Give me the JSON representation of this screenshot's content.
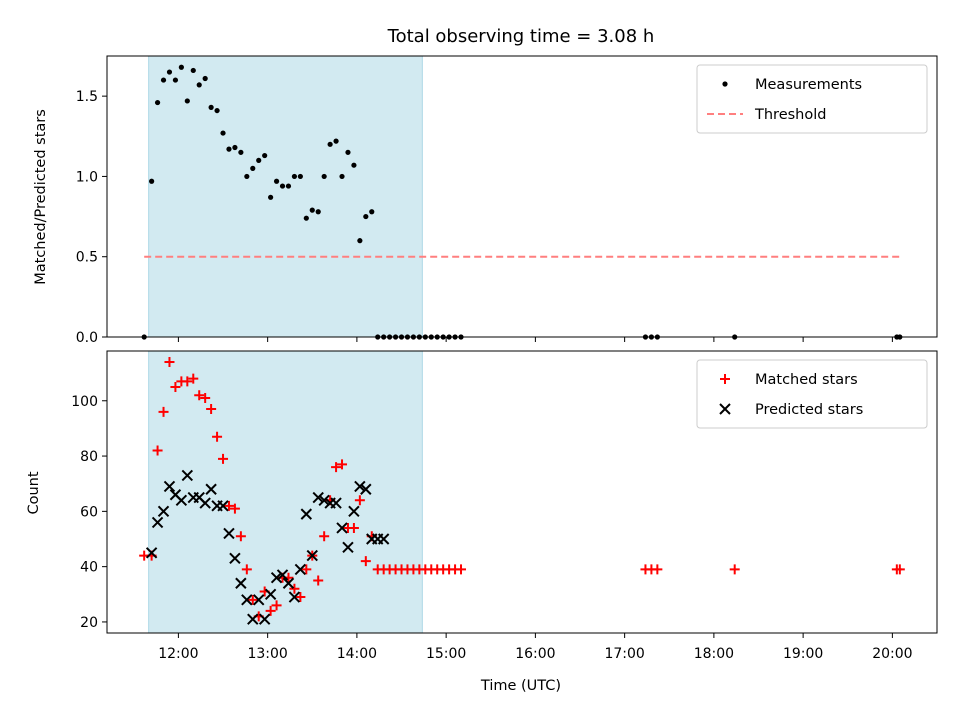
{
  "chart_data": {
    "type": "scatter",
    "title": "Total observing time = 3.08 h",
    "xlabel": "Time (UTC)",
    "x_tick_labels": [
      "12:00",
      "13:00",
      "14:00",
      "15:00",
      "16:00",
      "17:00",
      "18:00",
      "19:00",
      "20:00"
    ],
    "xlim": [
      "11:12",
      "20:30"
    ],
    "shaded_interval": [
      "11:40",
      "14:44"
    ],
    "colors": {
      "shade": "#add8e6",
      "matched": "#ff0000",
      "predicted": "#000000",
      "threshold": "#ff7f7f"
    },
    "panels": [
      {
        "ylabel": "Matched/Predicted stars",
        "ylim": [
          0,
          1.75
        ],
        "y_tick_labels": [
          "0.0",
          "0.5",
          "1.0",
          "1.5"
        ],
        "legend": {
          "placement": "top-right",
          "entries": [
            "Measurements",
            "Threshold"
          ]
        },
        "series": [
          {
            "name": "Measurements",
            "marker": "dot",
            "x": [
              "11:37",
              "11:42",
              "11:46",
              "11:50",
              "11:54",
              "11:58",
              "12:02",
              "12:06",
              "12:10",
              "12:14",
              "12:18",
              "12:22",
              "12:26",
              "12:30",
              "12:34",
              "12:38",
              "12:42",
              "12:46",
              "12:50",
              "12:54",
              "12:58",
              "13:02",
              "13:06",
              "13:10",
              "13:14",
              "13:18",
              "13:22",
              "13:26",
              "13:30",
              "13:34",
              "13:38",
              "13:42",
              "13:46",
              "13:50",
              "13:54",
              "13:58",
              "14:02",
              "14:06",
              "14:10",
              "14:14",
              "14:18",
              "14:22",
              "14:26",
              "14:30",
              "14:34",
              "14:38",
              "14:42",
              "14:46",
              "14:50",
              "14:54",
              "14:58",
              "15:02",
              "15:06",
              "15:10",
              "17:14",
              "17:18",
              "17:22",
              "18:14",
              "20:03",
              "20:05"
            ],
            "y": [
              0.0,
              0.97,
              1.46,
              1.6,
              1.65,
              1.6,
              1.68,
              1.47,
              1.66,
              1.57,
              1.61,
              1.43,
              1.41,
              1.27,
              1.17,
              1.18,
              1.15,
              1.0,
              1.05,
              1.1,
              1.13,
              0.87,
              0.97,
              0.94,
              0.94,
              1.0,
              1.0,
              0.74,
              0.79,
              0.78,
              1.0,
              1.2,
              1.22,
              1.0,
              1.15,
              1.07,
              0.6,
              0.75,
              0.78,
              0.0,
              0.0,
              0.0,
              0.0,
              0.0,
              0.0,
              0.0,
              0.0,
              0.0,
              0.0,
              0.0,
              0.0,
              0.0,
              0.0,
              0.0,
              0.0,
              0.0,
              0.0,
              0.0,
              0.0,
              0.0
            ]
          },
          {
            "name": "Threshold",
            "marker": "dashed-line",
            "x": [
              "11:37",
              "20:05"
            ],
            "y": [
              0.5,
              0.5
            ]
          }
        ]
      },
      {
        "ylabel": "Count",
        "ylim": [
          16,
          118
        ],
        "y_tick_labels": [
          "20",
          "40",
          "60",
          "80",
          "100"
        ],
        "legend": {
          "placement": "top-right",
          "entries": [
            "Matched stars",
            "Predicted stars"
          ]
        },
        "series": [
          {
            "name": "Matched stars",
            "marker": "plus",
            "x": [
              "11:37",
              "11:42",
              "11:46",
              "11:50",
              "11:54",
              "11:58",
              "12:02",
              "12:06",
              "12:10",
              "12:14",
              "12:18",
              "12:22",
              "12:26",
              "12:30",
              "12:34",
              "12:38",
              "12:42",
              "12:46",
              "12:50",
              "12:54",
              "12:58",
              "13:02",
              "13:06",
              "13:10",
              "13:14",
              "13:18",
              "13:22",
              "13:26",
              "13:30",
              "13:34",
              "13:38",
              "13:42",
              "13:46",
              "13:50",
              "13:54",
              "13:58",
              "14:02",
              "14:06",
              "14:10",
              "14:14",
              "14:18",
              "14:22",
              "14:26",
              "14:30",
              "14:34",
              "14:38",
              "14:42",
              "14:46",
              "14:50",
              "14:54",
              "14:58",
              "15:02",
              "15:06",
              "15:10",
              "17:14",
              "17:18",
              "17:22",
              "18:14",
              "20:03",
              "20:05"
            ],
            "y": [
              44,
              44,
              82,
              96,
              114,
              105,
              107,
              107,
              108,
              102,
              101,
              97,
              87,
              79,
              62,
              61,
              51,
              39,
              28,
              22,
              31,
              24,
              26,
              36,
              36,
              32,
              29,
              39,
              44,
              35,
              51,
              64,
              76,
              77,
              54,
              54,
              64,
              42,
              51,
              39,
              39,
              39,
              39,
              39,
              39,
              39,
              39,
              39,
              39,
              39,
              39,
              39,
              39,
              39,
              39,
              39,
              39,
              39,
              39,
              39
            ]
          },
          {
            "name": "Predicted stars",
            "marker": "x",
            "x": [
              "11:42",
              "11:46",
              "11:50",
              "11:54",
              "11:58",
              "12:02",
              "12:06",
              "12:10",
              "12:14",
              "12:18",
              "12:22",
              "12:26",
              "12:30",
              "12:34",
              "12:38",
              "12:42",
              "12:46",
              "12:50",
              "12:54",
              "12:58",
              "13:02",
              "13:06",
              "13:10",
              "13:14",
              "13:18",
              "13:22",
              "13:26",
              "13:30",
              "13:34",
              "13:38",
              "13:42",
              "13:46",
              "13:50",
              "13:54",
              "13:58",
              "14:02",
              "14:06",
              "14:10",
              "14:14",
              "14:18"
            ],
            "y": [
              45,
              56,
              60,
              69,
              66,
              64,
              73,
              65,
              65,
              63,
              68,
              62,
              62,
              52,
              43,
              34,
              28,
              21,
              28,
              21,
              30,
              36,
              37,
              34,
              29,
              39,
              59,
              44,
              65,
              64,
              63,
              63,
              54,
              47,
              60,
              69,
              68,
              50,
              50,
              50
            ]
          }
        ]
      }
    ]
  }
}
